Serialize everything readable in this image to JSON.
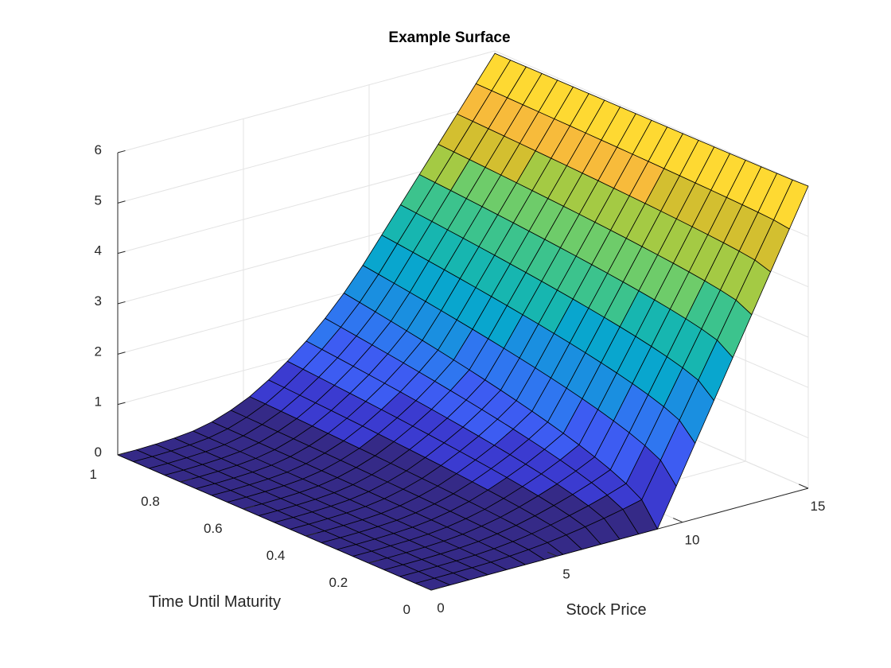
{
  "chart_data": {
    "type": "surface",
    "title": "Example Surface",
    "xlabel": "Stock Price",
    "ylabel": "Time Until Maturity",
    "zlabel": "",
    "x": [
      0,
      0.75,
      1.5,
      2.25,
      3,
      3.75,
      4.5,
      5.25,
      6,
      6.75,
      7.5,
      8.25,
      9,
      9.75,
      10.5,
      11.25,
      12,
      12.75,
      13.5,
      14.25,
      15
    ],
    "y": [
      0,
      0.05,
      0.1,
      0.15,
      0.2,
      0.25,
      0.3,
      0.35,
      0.4,
      0.45,
      0.5,
      0.55,
      0.6,
      0.65,
      0.7,
      0.75,
      0.8,
      0.85,
      0.9,
      0.95,
      1
    ],
    "z_profile_at_y0": [
      0,
      0,
      0,
      0,
      0,
      0,
      0,
      0,
      0,
      0,
      0,
      0,
      0,
      0,
      0,
      0,
      0,
      0,
      0,
      0,
      0
    ],
    "z_profile_at_y1": [
      0,
      0,
      0.01,
      0.03,
      0.07,
      0.15,
      0.28,
      0.45,
      0.68,
      0.95,
      1.25,
      1.6,
      2.0,
      2.45,
      2.95,
      3.45,
      3.95,
      4.45,
      4.95,
      5.45,
      5.95
    ],
    "xlim": [
      0,
      15
    ],
    "ylim": [
      0,
      1
    ],
    "zlim": [
      0,
      6
    ],
    "xticks": [
      "0",
      "5",
      "10",
      "15"
    ],
    "yticks": [
      "0",
      "0.2",
      "0.4",
      "0.6",
      "0.8",
      "1"
    ],
    "zticks": [
      "0",
      "1",
      "2",
      "3",
      "4",
      "5",
      "6"
    ],
    "grid": true,
    "colormap": "parula",
    "color_bands": [
      "#352a87",
      "#3b3bd0",
      "#3d5cf2",
      "#2f76f0",
      "#1a8fe0",
      "#09a6ce",
      "#17b6b0",
      "#3cc38d",
      "#6ecc6a",
      "#a4ca44",
      "#d3bf30",
      "#f7bb3b",
      "#fed932"
    ],
    "edge_color": "#000000"
  }
}
